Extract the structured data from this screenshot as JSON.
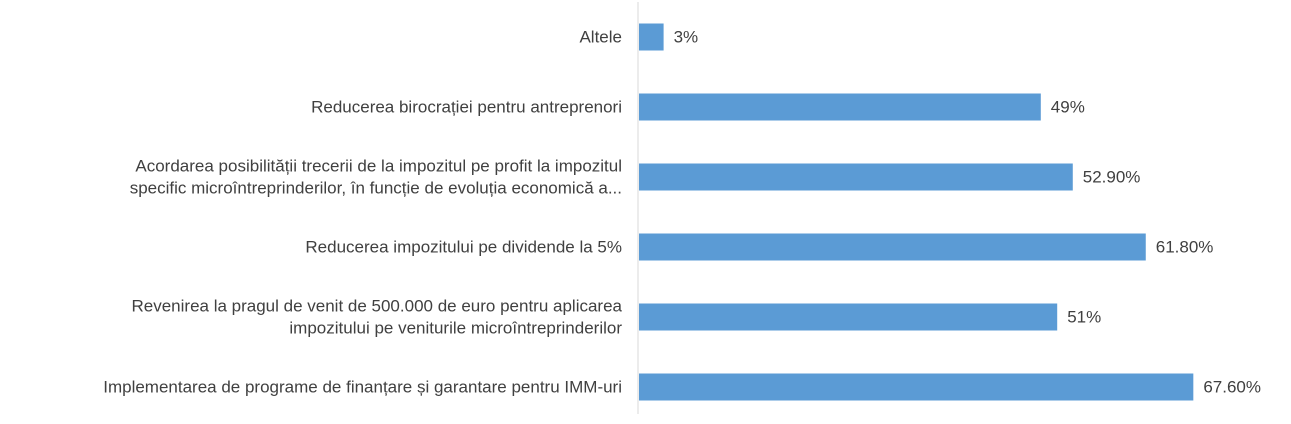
{
  "chart_data": {
    "type": "bar",
    "orientation": "horizontal",
    "title": "",
    "xlabel": "",
    "ylabel": "",
    "xlim": [
      0,
      100
    ],
    "grid": false,
    "legend": "none",
    "bar_color": "#5B9BD5",
    "categories": [
      "Altele",
      "Reducerea birocrației pentru antreprenori",
      "Acordarea posibilității trecerii de la impozitul pe profit la impozitul specific microîntreprinderilor, în funcție de evoluția economică a...",
      "Reducerea impozitului pe dividende la 5%",
      "Revenirea la pragul de venit de 500.000 de euro pentru aplicarea impozitului pe veniturile microîntreprinderilor",
      "Implementarea de programe de finanțare și garantare pentru IMM-uri"
    ],
    "category_lines": [
      [
        "Altele"
      ],
      [
        "Reducerea birocrației pentru antreprenori"
      ],
      [
        "Acordarea posibilității trecerii de la impozitul pe profit la impozitul",
        "specific microîntreprinderilor, în funcție de evoluția economică a..."
      ],
      [
        "Reducerea impozitului pe dividende la 5%"
      ],
      [
        "Revenirea la pragul de venit de 500.000 de euro pentru aplicarea",
        "impozitului pe veniturile microîntreprinderilor"
      ],
      [
        "Implementarea de programe de finanțare și garantare pentru IMM-uri"
      ]
    ],
    "values": [
      3,
      49,
      52.9,
      61.8,
      51,
      67.6
    ],
    "data_labels": [
      "3%",
      "49%",
      "52.90%",
      "61.80%",
      "51%",
      "67.60%"
    ]
  }
}
